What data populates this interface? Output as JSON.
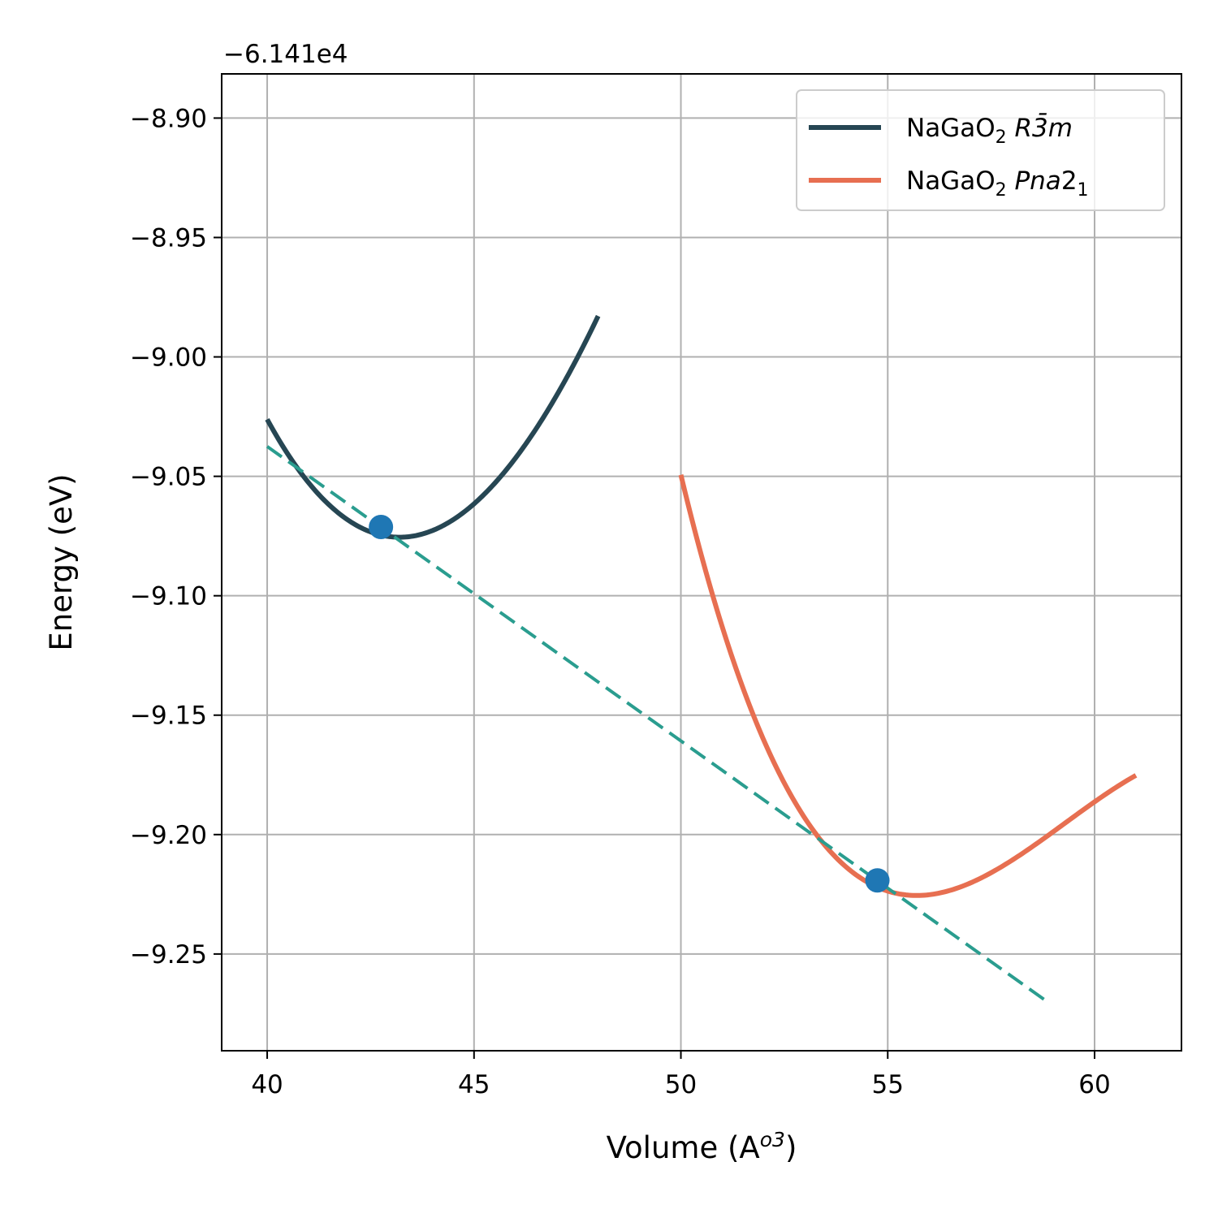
{
  "chart_data": {
    "type": "line",
    "title": "",
    "xlabel_base": "Volume (A",
    "xlabel_sup": "o3",
    "xlabel_close": ")",
    "ylabel": "Energy (eV)",
    "y_offset_label": "−6.141e4",
    "y_offset": -61410,
    "xlim": [
      38.9,
      62.1
    ],
    "ylim": [
      -9.2905,
      -8.8815
    ],
    "x_ticks": [
      40,
      45,
      50,
      55,
      60
    ],
    "y_ticks": [
      -8.9,
      -8.95,
      -9.0,
      -9.05,
      -9.1,
      -9.15,
      -9.2,
      -9.25
    ],
    "grid": true,
    "legend_placement": "upper-right",
    "series": [
      {
        "name_base": "NaGaO",
        "name_sub": "2",
        "name_phase": "R3̄m",
        "color": "#264653",
        "x_range": [
          40,
          48
        ],
        "x_min": 43.2,
        "y_min": -9.0755,
        "a": 0.0045,
        "b": -0.0001
      },
      {
        "name_base": "NaGaO",
        "name_sub": "2",
        "name_phase_italic": "Pna",
        "name_phase_normal": "2",
        "name_phase_sub": "1",
        "color": "#e76f51",
        "x_range": [
          50,
          61
        ],
        "x_min": 55.7,
        "y_min": -9.2255,
        "a": 0.00354,
        "b": -0.00033
      }
    ],
    "tangent_line": {
      "color": "#2a9d8f",
      "x": [
        40,
        58.9
      ],
      "y": [
        -9.0375,
        -9.2705
      ]
    },
    "tangent_points": {
      "color": "#1f77b4",
      "x": [
        42.75,
        54.75
      ],
      "y": [
        -9.0712,
        -9.2192
      ]
    }
  }
}
